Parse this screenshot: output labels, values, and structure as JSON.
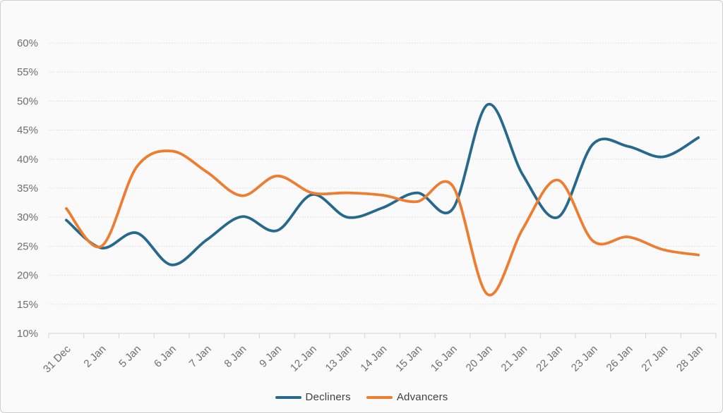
{
  "chart_data": {
    "type": "line",
    "title": "",
    "smooth": true,
    "grid": "horizontal",
    "legend_position": "bottom",
    "categories": [
      "31 Dec",
      "2 Jan",
      "5 Jan",
      "6 Jan",
      "7 Jan",
      "8 Jan",
      "9 Jan",
      "12 Jan",
      "13 Jan",
      "14 Jan",
      "15 Jan",
      "16 Jan",
      "20 Jan",
      "21 Jan",
      "22 Jan",
      "23 Jan",
      "26 Jan",
      "27 Jan",
      "28 Jan"
    ],
    "series": [
      {
        "name": "Decliners",
        "color": "#26698C",
        "values": [
          29.5,
          24.7,
          27.3,
          21.8,
          26.1,
          30.1,
          27.7,
          33.9,
          30.0,
          31.6,
          34.2,
          31.4,
          49.4,
          37.3,
          30.0,
          42.6,
          42.2,
          40.4,
          43.7
        ]
      },
      {
        "name": "Advancers",
        "color": "#ED7D31",
        "values": [
          31.5,
          25.0,
          38.6,
          41.4,
          37.8,
          33.7,
          37.1,
          34.2,
          34.2,
          33.8,
          32.7,
          35.4,
          16.7,
          28.0,
          36.4,
          25.9,
          26.6,
          24.4,
          23.5
        ]
      }
    ],
    "xlabel": "",
    "ylabel": "",
    "ylim": [
      10,
      60
    ],
    "ytick_step": 5,
    "y_tick_labels": [
      "10%",
      "15%",
      "20%",
      "25%",
      "30%",
      "35%",
      "40%",
      "45%",
      "50%",
      "55%",
      "60%"
    ]
  },
  "styles": {
    "background": "#fafafa",
    "frame_border": "#cfcfcf",
    "grid_color": "#d9d9d9",
    "axis_color": "#d4d4d4",
    "axis_label_color": "#6e6e6e",
    "legend_text_color": "#404040"
  }
}
